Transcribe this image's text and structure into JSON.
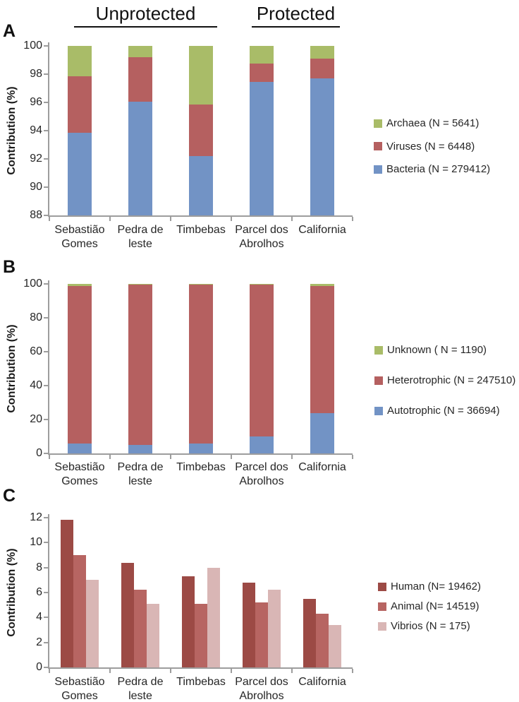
{
  "figure": {
    "group_headers": [
      {
        "label": "Unprotected"
      },
      {
        "label": "Protected"
      }
    ]
  },
  "chart_data": [
    {
      "id": "A",
      "type": "bar",
      "stacked": true,
      "ylabel": "Contribution (%)",
      "ylim": [
        88,
        100
      ],
      "ystep": 2,
      "grid": false,
      "legend_position": "right",
      "categories": [
        "Sebastião Gomes",
        "Pedra de leste",
        "Timbebas",
        "Parcel dos Abrolhos",
        "California"
      ],
      "category_lines": [
        [
          "Sebastião",
          "Gomes"
        ],
        [
          "Pedra de",
          "leste"
        ],
        [
          "Timbebas"
        ],
        [
          "Parcel dos",
          "Abrolhos"
        ],
        [
          "California"
        ]
      ],
      "series": [
        {
          "name": "Bacteria (N = 279412)",
          "color": "#7293c5",
          "values": [
            93.85,
            96.05,
            92.2,
            97.45,
            97.7
          ]
        },
        {
          "name": "Viruses (N = 6448)",
          "color": "#b56060",
          "values": [
            4.0,
            3.15,
            3.65,
            1.3,
            1.4
          ]
        },
        {
          "name": "Archaea (N = 5641)",
          "color": "#a9bc68",
          "values": [
            2.15,
            0.8,
            4.15,
            1.25,
            0.9
          ]
        }
      ]
    },
    {
      "id": "B",
      "type": "bar",
      "stacked": true,
      "ylabel": "Contribution (%)",
      "ylim": [
        0,
        100
      ],
      "ystep": 20,
      "grid": false,
      "legend_position": "right",
      "categories": [
        "Sebastião Gomes",
        "Pedra de leste",
        "Timbebas",
        "Parcel dos Abrolhos",
        "California"
      ],
      "category_lines": [
        [
          "Sebastião",
          "Gomes"
        ],
        [
          "Pedra de",
          "leste"
        ],
        [
          "Timbebas"
        ],
        [
          "Parcel dos",
          "Abrolhos"
        ],
        [
          "California"
        ]
      ],
      "series": [
        {
          "name": "Autotrophic (N = 36694)",
          "color": "#7293c5",
          "values": [
            6.0,
            5.0,
            6.0,
            10.2,
            23.7
          ]
        },
        {
          "name": "Heterotrophic (N = 247510)",
          "color": "#b56060",
          "values": [
            92.8,
            94.5,
            93.5,
            89.3,
            75.0
          ]
        },
        {
          "name": "Unknown ( N = 1190)",
          "color": "#a9bc68",
          "values": [
            1.2,
            0.5,
            0.5,
            0.5,
            1.3
          ]
        }
      ]
    },
    {
      "id": "C",
      "type": "bar",
      "stacked": false,
      "ylabel": "Contribution (%)",
      "ylim": [
        0,
        12
      ],
      "ystep": 2,
      "grid": false,
      "legend_position": "right",
      "categories": [
        "Sebastião Gomes",
        "Pedra de leste",
        "Timbebas",
        "Parcel dos Abrolhos",
        "California"
      ],
      "category_lines": [
        [
          "Sebastião",
          "Gomes"
        ],
        [
          "Pedra de",
          "leste"
        ],
        [
          "Timbebas"
        ],
        [
          "Parcel dos",
          "Abrolhos"
        ],
        [
          "California"
        ]
      ],
      "series": [
        {
          "name": "Human (N= 19462)",
          "color": "#9c4a45",
          "values": [
            11.85,
            8.4,
            7.3,
            6.8,
            5.5
          ]
        },
        {
          "name": "Animal (N= 14519)",
          "color": "#b76562",
          "values": [
            9.0,
            6.2,
            5.1,
            5.2,
            4.3
          ]
        },
        {
          "name": "Vibrios (N = 175)",
          "color": "#d9b6b5",
          "values": [
            7.0,
            5.1,
            8.0,
            6.2,
            3.4
          ]
        }
      ]
    }
  ]
}
